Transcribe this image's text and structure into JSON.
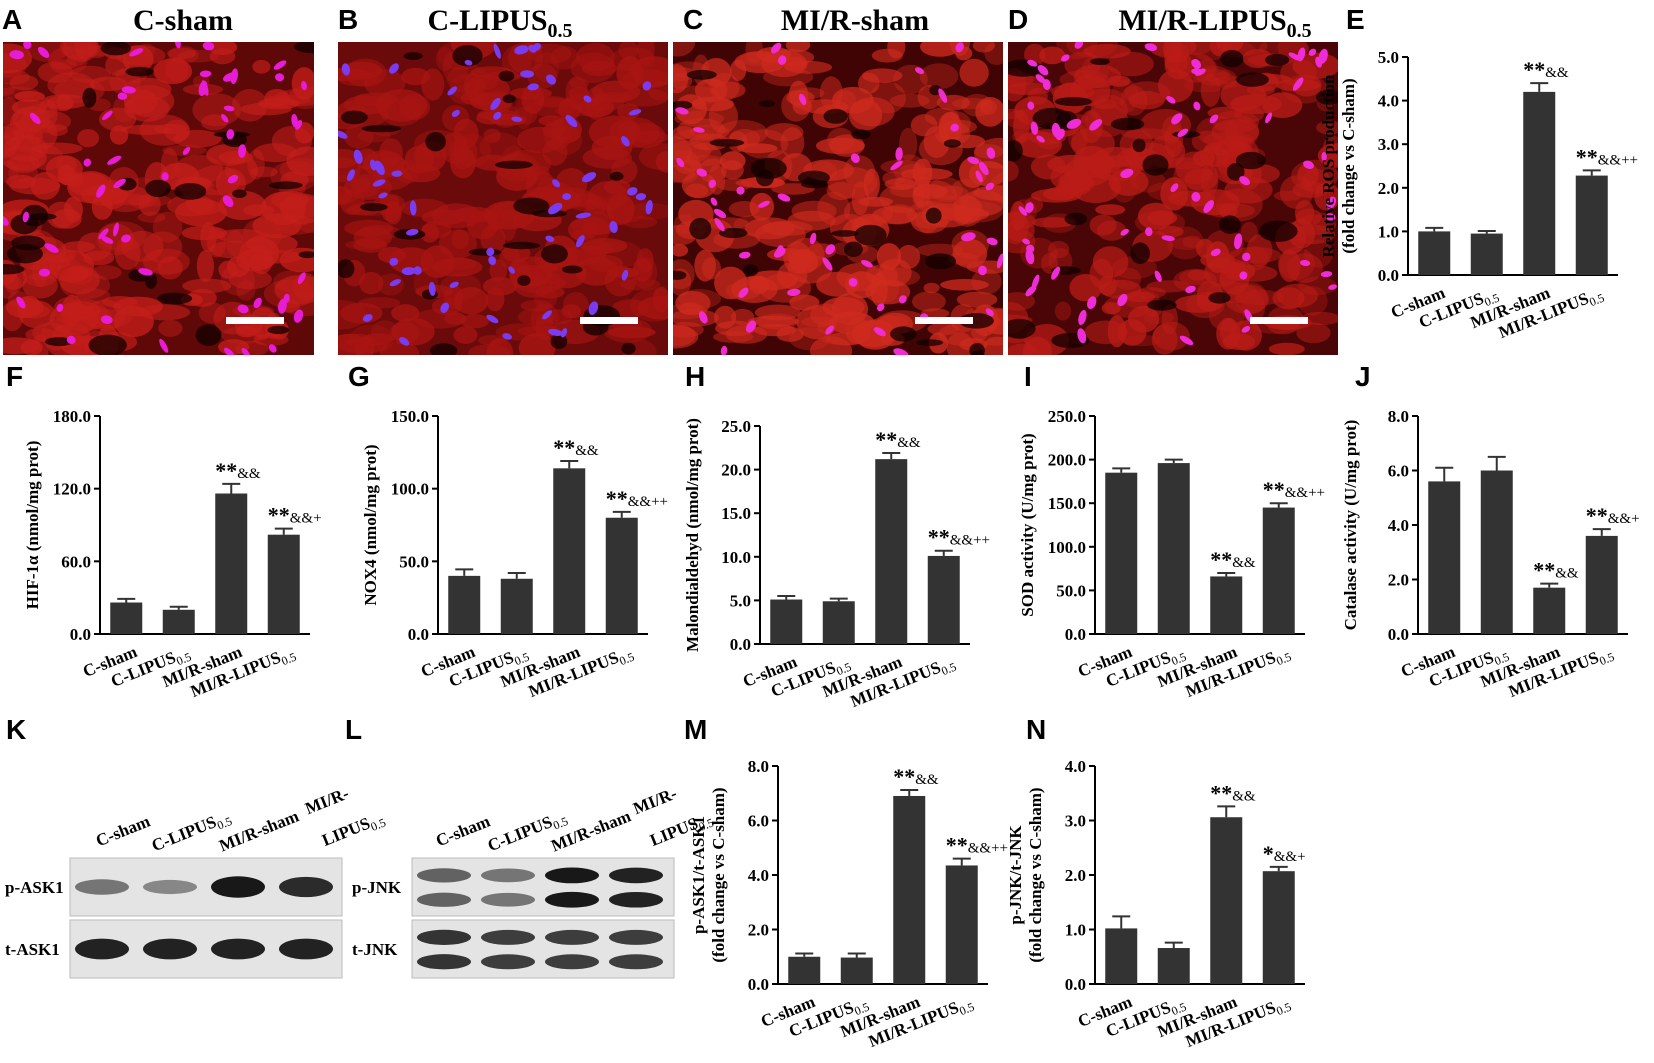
{
  "panel_labels": [
    "A",
    "B",
    "C",
    "D",
    "E",
    "F",
    "G",
    "H",
    "I",
    "J",
    "K",
    "L",
    "M",
    "N"
  ],
  "micrographs": [
    {
      "label": "A",
      "title": "C-sham",
      "title_sub": "",
      "bg": "#5e0808",
      "tissue": "#c41e1a",
      "nuclei_count": 55,
      "nucleus_color": "#e61cd6",
      "nucleus_style": "magenta",
      "scale_bar": true
    },
    {
      "label": "B",
      "title": "C-LIPUS",
      "title_sub": "0.5",
      "bg": "#6b0a0a",
      "tissue": "#a91512",
      "nuclei_count": 60,
      "nucleus_color": "#7a3cf2",
      "nucleus_style": "blue",
      "scale_bar": true
    },
    {
      "label": "C",
      "title": "MI/R-sham",
      "title_sub": "",
      "bg": "#400404",
      "tissue": "#cf2a1e",
      "nuclei_count": 50,
      "nucleus_color": "#ee2cd2",
      "nucleus_style": "magenta",
      "scale_bar": true
    },
    {
      "label": "D",
      "title": "MI/R-LIPUS",
      "title_sub": "0.5",
      "bg": "#4a0606",
      "tissue": "#bb1c17",
      "nuclei_count": 65,
      "nucleus_color": "#ee2cd8",
      "nucleus_style": "magenta",
      "scale_bar": true
    }
  ],
  "categories": [
    {
      "main": "C-sham",
      "sub": ""
    },
    {
      "main": "C-LIPUS",
      "sub": "0.5"
    },
    {
      "main": "MI/R-sham",
      "sub": ""
    },
    {
      "main": "MI/R-LIPUS",
      "sub": "0.5"
    }
  ],
  "chart_data": [
    {
      "panel": "E",
      "type": "bar",
      "ylabel": "Relative ROS production",
      "ylabel2": "(fold change vs C-sham)",
      "ylim": [
        0,
        5
      ],
      "ticks": [
        0,
        1,
        2,
        3,
        4,
        5
      ],
      "tick_labels": [
        "0.0",
        "1.0",
        "2.0",
        "3.0",
        "4.0",
        "5.0"
      ],
      "values": [
        1.0,
        0.95,
        4.2,
        2.28
      ],
      "errors": [
        0.08,
        0.06,
        0.2,
        0.12
      ],
      "annotations": [
        "",
        "",
        "**&&",
        "**&&++"
      ]
    },
    {
      "panel": "F",
      "type": "bar",
      "ylabel": "HIF-1α (nmol/mg prot)",
      "ylabel2": "",
      "ylim": [
        0,
        180
      ],
      "ticks": [
        0,
        60,
        120,
        180
      ],
      "tick_labels": [
        "0.0",
        "60.0",
        "120.0",
        "180.0"
      ],
      "values": [
        26,
        20,
        116,
        82
      ],
      "errors": [
        3,
        2.5,
        8,
        5
      ],
      "annotations": [
        "",
        "",
        "**&&",
        "**&&+"
      ]
    },
    {
      "panel": "G",
      "type": "bar",
      "ylabel": "NOX4 (nmol/mg prot)",
      "ylabel2": "",
      "ylim": [
        0,
        150
      ],
      "ticks": [
        0,
        50,
        100,
        150
      ],
      "tick_labels": [
        "0.0",
        "50.0",
        "100.0",
        "150.0"
      ],
      "values": [
        40,
        38,
        114,
        80
      ],
      "errors": [
        4.5,
        4,
        5,
        4
      ],
      "annotations": [
        "",
        "",
        "**&&",
        "**&&++"
      ]
    },
    {
      "panel": "H",
      "type": "bar",
      "ylabel": "Malondialdehyd (nmol/mg prot)",
      "ylabel2": "",
      "ylim": [
        0,
        25
      ],
      "ticks": [
        0,
        5,
        10,
        15,
        20,
        25
      ],
      "tick_labels": [
        "0.0",
        "5.0",
        "10.0",
        "15.0",
        "20.0",
        "25.0"
      ],
      "values": [
        5.1,
        4.9,
        21.2,
        10.1
      ],
      "errors": [
        0.4,
        0.3,
        0.7,
        0.6
      ],
      "annotations": [
        "",
        "",
        "**&&",
        "**&&++"
      ]
    },
    {
      "panel": "I",
      "type": "bar",
      "ylabel": "SOD activity (U/mg prot)",
      "ylabel2": "",
      "ylim": [
        0,
        250
      ],
      "ticks": [
        0,
        50,
        100,
        150,
        200,
        250
      ],
      "tick_labels": [
        "0.0",
        "50.0",
        "100.0",
        "150.0",
        "200.0",
        "250.0"
      ],
      "values": [
        185,
        196,
        66,
        145
      ],
      "errors": [
        5,
        4,
        4,
        5
      ],
      "annotations": [
        "",
        "",
        "**&&",
        "**&&++"
      ]
    },
    {
      "panel": "J",
      "type": "bar",
      "ylabel": "Catalase activity (U/mg prot)",
      "ylabel2": "",
      "ylim": [
        0,
        8
      ],
      "ticks": [
        0,
        2,
        4,
        6,
        8
      ],
      "tick_labels": [
        "0.0",
        "2.0",
        "4.0",
        "6.0",
        "8.0"
      ],
      "values": [
        5.6,
        6.0,
        1.7,
        3.6
      ],
      "errors": [
        0.5,
        0.5,
        0.15,
        0.25
      ],
      "annotations": [
        "",
        "",
        "**&&",
        "**&&+"
      ]
    },
    {
      "panel": "M",
      "type": "bar",
      "ylabel": "p-ASK1/t-ASK1",
      "ylabel2": "(fold change vs C-sham)",
      "ylim": [
        0,
        8
      ],
      "ticks": [
        0,
        2,
        4,
        6,
        8
      ],
      "tick_labels": [
        "0.0",
        "2.0",
        "4.0",
        "6.0",
        "8.0"
      ],
      "values": [
        1.0,
        0.97,
        6.9,
        4.35
      ],
      "errors": [
        0.12,
        0.15,
        0.22,
        0.25
      ],
      "annotations": [
        "",
        "",
        "**&&",
        "**&&++"
      ]
    },
    {
      "panel": "N",
      "type": "bar",
      "ylabel": "p-JNK/t-JNK",
      "ylabel2": "(fold change vs C-sham)",
      "ylim": [
        0,
        4
      ],
      "ticks": [
        0,
        1,
        2,
        3,
        4
      ],
      "tick_labels": [
        "0.0",
        "1.0",
        "2.0",
        "3.0",
        "4.0"
      ],
      "values": [
        1.02,
        0.66,
        3.06,
        2.07
      ],
      "errors": [
        0.22,
        0.1,
        0.2,
        0.08
      ],
      "annotations": [
        "",
        "",
        "**&&",
        "*&&+"
      ]
    }
  ],
  "blots": [
    {
      "panel": "K",
      "lanes": [
        "C-sham",
        "C-LIPUS0.5",
        "MI/R-sham",
        "MI/R-LIPUS0.5"
      ],
      "lane_labels": [
        {
          "main": "C-sham",
          "sub": ""
        },
        {
          "main": "C-LIPUS",
          "sub": "0.5"
        },
        {
          "main": "MI/R-sham",
          "sub": ""
        },
        {
          "main": "MI/R-",
          "sub": ""
        },
        {
          "main": "LIPUS",
          "sub": "0.5"
        }
      ],
      "rows": [
        {
          "name": "p-ASK1",
          "intensity": [
            0.45,
            0.35,
            0.95,
            0.85
          ]
        },
        {
          "name": "t-ASK1",
          "intensity": [
            0.9,
            0.9,
            0.9,
            0.9
          ]
        }
      ]
    },
    {
      "panel": "L",
      "lanes": [
        "C-sham",
        "C-LIPUS0.5",
        "MI/R-sham",
        "MI/R-LIPUS0.5"
      ],
      "lane_labels": [
        {
          "main": "C-sham",
          "sub": ""
        },
        {
          "main": "C-LIPUS",
          "sub": "0.5"
        },
        {
          "main": "MI/R-sham",
          "sub": ""
        },
        {
          "main": "MI/R-",
          "sub": ""
        },
        {
          "main": "LIPUS",
          "sub": "0.5"
        }
      ],
      "rows": [
        {
          "name": "p-JNK",
          "intensity": [
            0.55,
            0.45,
            0.95,
            0.9
          ],
          "double": true
        },
        {
          "name": "t-JNK",
          "intensity": [
            0.8,
            0.75,
            0.75,
            0.75
          ],
          "double": true
        }
      ]
    }
  ]
}
